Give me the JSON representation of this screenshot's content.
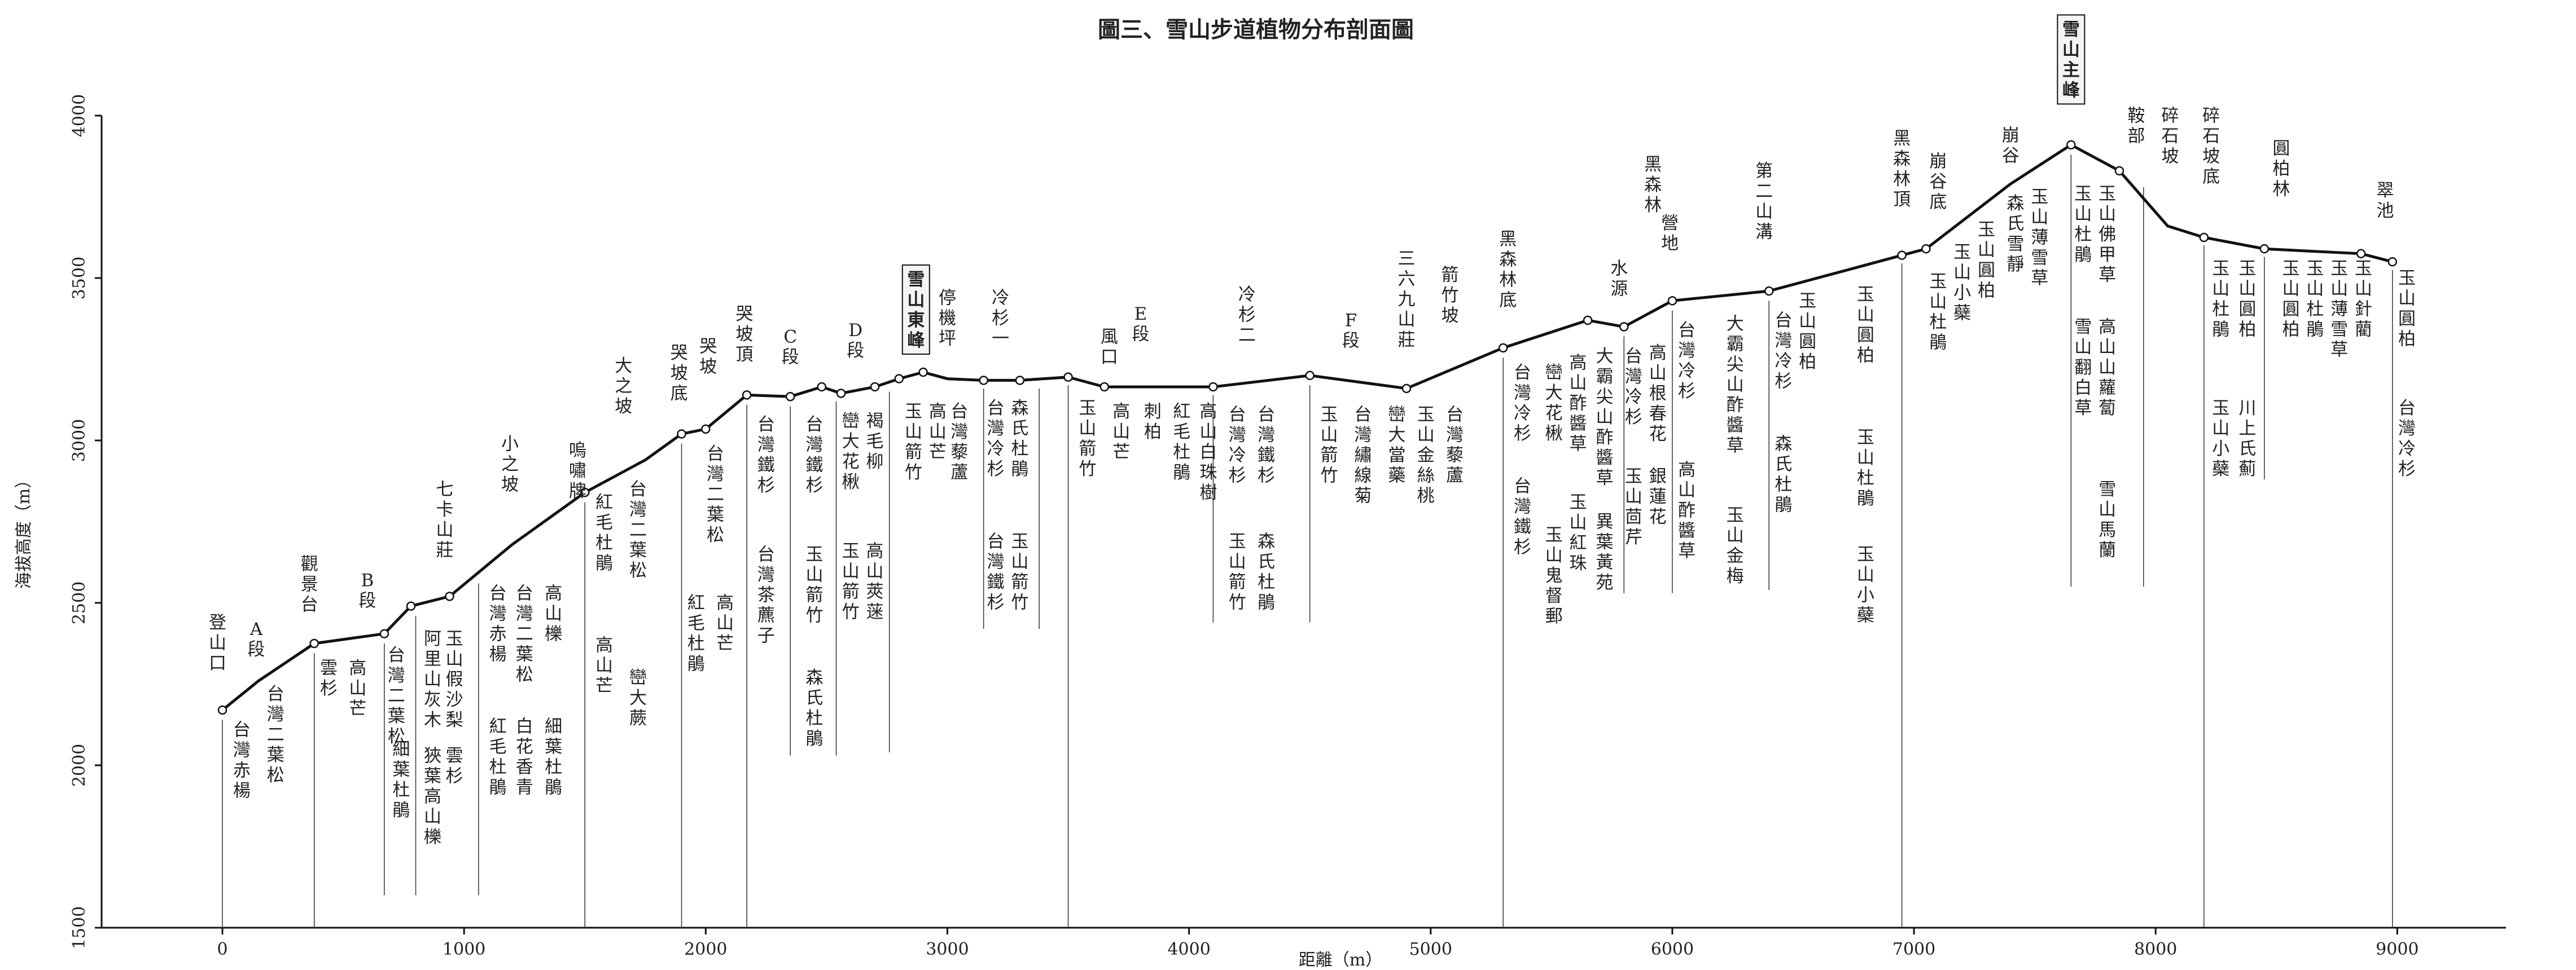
{
  "title": "圖三、雪山步道植物分布剖面圖",
  "axes": {
    "xlabel": "距離（m）",
    "ylabel": "海拔高度（m）",
    "xlim": [
      -500,
      9450
    ],
    "ylim": [
      1500,
      4000
    ],
    "xticks": [
      0,
      1000,
      2000,
      3000,
      4000,
      5000,
      6000,
      7000,
      8000,
      9000
    ],
    "yticks": [
      1500,
      2000,
      2500,
      3000,
      3500,
      4000
    ]
  },
  "chart_data": {
    "type": "line",
    "title": "圖三、雪山步道植物分布剖面圖",
    "xlabel": "距離（m）",
    "ylabel": "海拔高度（m）",
    "xlim": [
      -500,
      9450
    ],
    "ylim": [
      1500,
      4000
    ],
    "profile": [
      {
        "x": 0,
        "y": 2170
      },
      {
        "x": 150,
        "y": 2260
      },
      {
        "x": 380,
        "y": 2375
      },
      {
        "x": 670,
        "y": 2405
      },
      {
        "x": 780,
        "y": 2490
      },
      {
        "x": 940,
        "y": 2520
      },
      {
        "x": 1200,
        "y": 2680
      },
      {
        "x": 1500,
        "y": 2840
      },
      {
        "x": 1750,
        "y": 2940
      },
      {
        "x": 1900,
        "y": 3020
      },
      {
        "x": 2000,
        "y": 3035
      },
      {
        "x": 2170,
        "y": 3140
      },
      {
        "x": 2350,
        "y": 3135
      },
      {
        "x": 2480,
        "y": 3165
      },
      {
        "x": 2560,
        "y": 3145
      },
      {
        "x": 2700,
        "y": 3165
      },
      {
        "x": 2800,
        "y": 3190
      },
      {
        "x": 2900,
        "y": 3210
      },
      {
        "x": 3000,
        "y": 3190
      },
      {
        "x": 3150,
        "y": 3185
      },
      {
        "x": 3300,
        "y": 3185
      },
      {
        "x": 3500,
        "y": 3195
      },
      {
        "x": 3650,
        "y": 3165
      },
      {
        "x": 4100,
        "y": 3165
      },
      {
        "x": 4500,
        "y": 3200
      },
      {
        "x": 4900,
        "y": 3160
      },
      {
        "x": 5300,
        "y": 3285
      },
      {
        "x": 5650,
        "y": 3370
      },
      {
        "x": 5800,
        "y": 3350
      },
      {
        "x": 6000,
        "y": 3430
      },
      {
        "x": 6400,
        "y": 3460
      },
      {
        "x": 6950,
        "y": 3570
      },
      {
        "x": 7050,
        "y": 3590
      },
      {
        "x": 7400,
        "y": 3790
      },
      {
        "x": 7650,
        "y": 3910
      },
      {
        "x": 7850,
        "y": 3830
      },
      {
        "x": 8050,
        "y": 3660
      },
      {
        "x": 8200,
        "y": 3625
      },
      {
        "x": 8450,
        "y": 3590
      },
      {
        "x": 8850,
        "y": 3575
      },
      {
        "x": 8980,
        "y": 3550
      }
    ],
    "points": [
      {
        "x": 0,
        "y": 2170
      },
      {
        "x": 380,
        "y": 2375
      },
      {
        "x": 670,
        "y": 2405
      },
      {
        "x": 780,
        "y": 2490
      },
      {
        "x": 940,
        "y": 2520
      },
      {
        "x": 1500,
        "y": 2840
      },
      {
        "x": 1900,
        "y": 3020
      },
      {
        "x": 2000,
        "y": 3035
      },
      {
        "x": 2170,
        "y": 3140
      },
      {
        "x": 2350,
        "y": 3135
      },
      {
        "x": 2480,
        "y": 3165
      },
      {
        "x": 2560,
        "y": 3145
      },
      {
        "x": 2700,
        "y": 3165
      },
      {
        "x": 2800,
        "y": 3190
      },
      {
        "x": 2900,
        "y": 3210
      },
      {
        "x": 3150,
        "y": 3185
      },
      {
        "x": 3300,
        "y": 3185
      },
      {
        "x": 3500,
        "y": 3195
      },
      {
        "x": 3650,
        "y": 3165
      },
      {
        "x": 4100,
        "y": 3165
      },
      {
        "x": 4500,
        "y": 3200
      },
      {
        "x": 4900,
        "y": 3160
      },
      {
        "x": 5300,
        "y": 3285
      },
      {
        "x": 5650,
        "y": 3370
      },
      {
        "x": 5800,
        "y": 3350
      },
      {
        "x": 6000,
        "y": 3430
      },
      {
        "x": 6400,
        "y": 3460
      },
      {
        "x": 6950,
        "y": 3570
      },
      {
        "x": 7050,
        "y": 3590
      },
      {
        "x": 7650,
        "y": 3910
      },
      {
        "x": 7850,
        "y": 3830
      },
      {
        "x": 8200,
        "y": 3625
      },
      {
        "x": 8450,
        "y": 3590
      },
      {
        "x": 8850,
        "y": 3575
      },
      {
        "x": 8980,
        "y": 3550
      }
    ],
    "dividers": [
      {
        "x": 0,
        "y_top": 2140,
        "y_bottom": 1500
      },
      {
        "x": 380,
        "y_top": 2345,
        "y_bottom": 1500
      },
      {
        "x": 670,
        "y_top": 2375,
        "y_bottom": 1600
      },
      {
        "x": 800,
        "y_top": 2460,
        "y_bottom": 1600
      },
      {
        "x": 1060,
        "y_top": 2560,
        "y_bottom": 1600
      },
      {
        "x": 1500,
        "y_top": 2810,
        "y_bottom": 1500
      },
      {
        "x": 1900,
        "y_top": 2990,
        "y_bottom": 1500
      },
      {
        "x": 2170,
        "y_top": 3110,
        "y_bottom": 1500
      },
      {
        "x": 2350,
        "y_top": 3105,
        "y_bottom": 2030
      },
      {
        "x": 2540,
        "y_top": 3120,
        "y_bottom": 2030
      },
      {
        "x": 2760,
        "y_top": 3150,
        "y_bottom": 2040
      },
      {
        "x": 3150,
        "y_top": 3160,
        "y_bottom": 2420
      },
      {
        "x": 3380,
        "y_top": 3160,
        "y_bottom": 2420
      },
      {
        "x": 3500,
        "y_top": 3170,
        "y_bottom": 1500
      },
      {
        "x": 4100,
        "y_top": 3140,
        "y_bottom": 2440
      },
      {
        "x": 4500,
        "y_top": 3170,
        "y_bottom": 2440
      },
      {
        "x": 5300,
        "y_top": 3255,
        "y_bottom": 1500
      },
      {
        "x": 5800,
        "y_top": 3320,
        "y_bottom": 2530
      },
      {
        "x": 6000,
        "y_top": 3400,
        "y_bottom": 2530
      },
      {
        "x": 6400,
        "y_top": 3430,
        "y_bottom": 2540
      },
      {
        "x": 6950,
        "y_top": 3545,
        "y_bottom": 1500
      },
      {
        "x": 7650,
        "y_top": 3880,
        "y_bottom": 2550
      },
      {
        "x": 7950,
        "y_top": 3780,
        "y_bottom": 2550
      },
      {
        "x": 8200,
        "y_top": 3600,
        "y_bottom": 1500
      },
      {
        "x": 8450,
        "y_top": 3565,
        "y_bottom": 2880
      },
      {
        "x": 8980,
        "y_top": 3525,
        "y_bottom": 1500
      }
    ],
    "labels": [
      {
        "text": "登山口",
        "x": -20,
        "y": 2470
      },
      {
        "text": "A段",
        "x": 140,
        "y": 2450
      },
      {
        "text": "觀景台",
        "x": 360,
        "y": 2650
      },
      {
        "text": "B段",
        "x": 600,
        "y": 2600
      },
      {
        "text": "七卡山莊",
        "x": 920,
        "y": 2880
      },
      {
        "text": "小之坡",
        "x": 1190,
        "y": 3020
      },
      {
        "text": "嗚嘯牌",
        "x": 1470,
        "y": 3000
      },
      {
        "text": "大之坡",
        "x": 1660,
        "y": 3260
      },
      {
        "text": "哭坡底",
        "x": 1890,
        "y": 3300
      },
      {
        "text": "哭坡",
        "x": 2010,
        "y": 3320
      },
      {
        "text": "哭坡頂",
        "x": 2160,
        "y": 3420
      },
      {
        "text": "C段",
        "x": 2350,
        "y": 3350
      },
      {
        "text": "D段",
        "x": 2620,
        "y": 3370
      },
      {
        "text": "停機坪",
        "x": 3000,
        "y": 3470
      },
      {
        "text": "冷杉一",
        "x": 3220,
        "y": 3470
      },
      {
        "text": "風口",
        "x": 3670,
        "y": 3350
      },
      {
        "text": "E段",
        "x": 3800,
        "y": 3420
      },
      {
        "text": "冷杉二",
        "x": 4240,
        "y": 3480
      },
      {
        "text": "F段",
        "x": 4670,
        "y": 3400
      },
      {
        "text": "三六九山莊",
        "x": 4900,
        "y": 3590
      },
      {
        "text": "箭竹坡",
        "x": 5080,
        "y": 3540
      },
      {
        "text": "黑森林底",
        "x": 5320,
        "y": 3650
      },
      {
        "text": "水源",
        "x": 5780,
        "y": 3560
      },
      {
        "text": "營地",
        "x": 5990,
        "y": 3700
      },
      {
        "text": "黑森林",
        "x": 5920,
        "y": 3880
      },
      {
        "text": "第二山溝",
        "x": 6380,
        "y": 3860
      },
      {
        "text": "黑森林頂",
        "x": 6950,
        "y": 3960
      },
      {
        "text": "崩谷底",
        "x": 7100,
        "y": 3890
      },
      {
        "text": "崩谷",
        "x": 7400,
        "y": 3970
      },
      {
        "text": "鞍部",
        "x": 7920,
        "y": 4030
      },
      {
        "text": "碎石坡",
        "x": 8060,
        "y": 4030
      },
      {
        "text": "碎石坡底",
        "x": 8230,
        "y": 4030
      },
      {
        "text": "圓柏林",
        "x": 8520,
        "y": 3930
      },
      {
        "text": "翠池",
        "x": 8950,
        "y": 3800
      }
    ],
    "boxed_labels": [
      {
        "text": "雪山東峰",
        "x": 2870,
        "y": 3540
      },
      {
        "text": "雪山主峰",
        "x": 7650,
        "y": 4310
      }
    ],
    "species": [
      {
        "x": 80,
        "y": 2140,
        "text": "台灣赤楊"
      },
      {
        "x": 220,
        "y": 2250,
        "text": "台灣二葉松"
      },
      {
        "x": 440,
        "y": 2330,
        "text": "雲杉"
      },
      {
        "x": 560,
        "y": 2330,
        "text": "高山芒"
      },
      {
        "x": 720,
        "y": 2370,
        "text": "台灣二葉松"
      },
      {
        "x": 740,
        "y": 2080,
        "text": "細葉杜鵑"
      },
      {
        "x": 870,
        "y": 2420,
        "text": "阿里山灰木"
      },
      {
        "x": 960,
        "y": 2420,
        "text": "玉山假沙梨"
      },
      {
        "x": 870,
        "y": 2060,
        "text": "狹葉高山櫟"
      },
      {
        "x": 960,
        "y": 2060,
        "text": "雲杉"
      },
      {
        "x": 1140,
        "y": 2560,
        "text": "台灣赤楊"
      },
      {
        "x": 1250,
        "y": 2560,
        "text": "台灣二葉松"
      },
      {
        "x": 1370,
        "y": 2560,
        "text": "高山櫟"
      },
      {
        "x": 1140,
        "y": 2150,
        "text": "紅毛杜鵑"
      },
      {
        "x": 1250,
        "y": 2150,
        "text": "白花香青"
      },
      {
        "x": 1370,
        "y": 2150,
        "text": "細葉杜鵑"
      },
      {
        "x": 1580,
        "y": 2840,
        "text": "紅毛杜鵑"
      },
      {
        "x": 1720,
        "y": 2880,
        "text": "台灣二葉松"
      },
      {
        "x": 1580,
        "y": 2400,
        "text": "高山芒"
      },
      {
        "x": 1720,
        "y": 2300,
        "text": "巒大蕨"
      },
      {
        "x": 2040,
        "y": 2990,
        "text": "台灣二葉松"
      },
      {
        "x": 1960,
        "y": 2530,
        "text": "紅毛杜鵑"
      },
      {
        "x": 2080,
        "y": 2530,
        "text": "高山芒"
      },
      {
        "x": 2250,
        "y": 3080,
        "text": "台灣鐵杉"
      },
      {
        "x": 2250,
        "y": 2680,
        "text": "台灣茶藨子"
      },
      {
        "x": 2450,
        "y": 3080,
        "text": "台灣鐵杉"
      },
      {
        "x": 2450,
        "y": 2680,
        "text": "玉山箭竹"
      },
      {
        "x": 2450,
        "y": 2300,
        "text": "森氏杜鵑"
      },
      {
        "x": 2600,
        "y": 3090,
        "text": "巒大花楸"
      },
      {
        "x": 2700,
        "y": 3090,
        "text": "褐毛柳"
      },
      {
        "x": 2600,
        "y": 2690,
        "text": "玉山箭竹"
      },
      {
        "x": 2700,
        "y": 2690,
        "text": "高山莢蒾"
      },
      {
        "x": 2860,
        "y": 3120,
        "text": "玉山箭竹"
      },
      {
        "x": 2960,
        "y": 3120,
        "text": "高山芒"
      },
      {
        "x": 3050,
        "y": 3120,
        "text": "台灣藜蘆"
      },
      {
        "x": 3200,
        "y": 3130,
        "text": "台灣冷杉"
      },
      {
        "x": 3300,
        "y": 3130,
        "text": "森氏杜鵑"
      },
      {
        "x": 3200,
        "y": 2720,
        "text": "台灣鐵杉"
      },
      {
        "x": 3300,
        "y": 2720,
        "text": "玉山箭竹"
      },
      {
        "x": 3580,
        "y": 3130,
        "text": "玉山箭竹"
      },
      {
        "x": 3720,
        "y": 3120,
        "text": "高山芒"
      },
      {
        "x": 3850,
        "y": 3120,
        "text": "刺柏"
      },
      {
        "x": 3970,
        "y": 3120,
        "text": "紅毛杜鵑"
      },
      {
        "x": 4080,
        "y": 3120,
        "text": "高山白珠樹"
      },
      {
        "x": 4200,
        "y": 3110,
        "text": "台灣冷杉"
      },
      {
        "x": 4320,
        "y": 3110,
        "text": "台灣鐵杉"
      },
      {
        "x": 4200,
        "y": 2720,
        "text": "玉山箭竹"
      },
      {
        "x": 4320,
        "y": 2720,
        "text": "森氏杜鵑"
      },
      {
        "x": 4580,
        "y": 3110,
        "text": "玉山箭竹"
      },
      {
        "x": 4720,
        "y": 3110,
        "text": "台灣繡線菊"
      },
      {
        "x": 4860,
        "y": 3110,
        "text": "巒大當藥"
      },
      {
        "x": 4980,
        "y": 3110,
        "text": "玉山金絲桃"
      },
      {
        "x": 5100,
        "y": 3110,
        "text": "台灣藜蘆"
      },
      {
        "x": 5380,
        "y": 3240,
        "text": "台灣冷杉"
      },
      {
        "x": 5380,
        "y": 2890,
        "text": "台灣鐵杉"
      },
      {
        "x": 5510,
        "y": 3240,
        "text": "巒大花楸"
      },
      {
        "x": 5510,
        "y": 2740,
        "text": "玉山鬼督郵"
      },
      {
        "x": 5610,
        "y": 3270,
        "text": "高山酢醬草"
      },
      {
        "x": 5610,
        "y": 2840,
        "text": "玉山紅珠"
      },
      {
        "x": 5720,
        "y": 3290,
        "text": "大霸尖山酢醬草"
      },
      {
        "x": 5720,
        "y": 2780,
        "text": "異葉黃苑"
      },
      {
        "x": 5840,
        "y": 3290,
        "text": "台灣冷杉"
      },
      {
        "x": 5840,
        "y": 2920,
        "text": "玉山茴芹"
      },
      {
        "x": 5940,
        "y": 3300,
        "text": "高山根春花"
      },
      {
        "x": 5940,
        "y": 2920,
        "text": "銀蓮花"
      },
      {
        "x": 6060,
        "y": 3370,
        "text": "台灣冷杉"
      },
      {
        "x": 6060,
        "y": 2940,
        "text": "高山酢醬草"
      },
      {
        "x": 6260,
        "y": 3390,
        "text": "大霸尖山酢醬草"
      },
      {
        "x": 6260,
        "y": 2800,
        "text": "玉山金梅"
      },
      {
        "x": 6460,
        "y": 3400,
        "text": "台灣冷杉"
      },
      {
        "x": 6460,
        "y": 3020,
        "text": "森氏杜鵑"
      },
      {
        "x": 6560,
        "y": 3460,
        "text": "玉山圓柏"
      },
      {
        "x": 6800,
        "y": 3480,
        "text": "玉山圓柏"
      },
      {
        "x": 6800,
        "y": 3040,
        "text": "玉山杜鵑"
      },
      {
        "x": 6800,
        "y": 2680,
        "text": "玉山小蘗"
      },
      {
        "x": 7100,
        "y": 3520,
        "text": "玉山杜鵑"
      },
      {
        "x": 7200,
        "y": 3610,
        "text": "玉山小蘗"
      },
      {
        "x": 7300,
        "y": 3680,
        "text": "玉山圓柏"
      },
      {
        "x": 7420,
        "y": 3760,
        "text": "森氏雪靜"
      },
      {
        "x": 7520,
        "y": 3780,
        "text": "玉山薄雪草"
      },
      {
        "x": 7700,
        "y": 3790,
        "text": "玉山杜鵑"
      },
      {
        "x": 7800,
        "y": 3790,
        "text": "玉山佛甲草"
      },
      {
        "x": 7700,
        "y": 3380,
        "text": "雪山翻白草"
      },
      {
        "x": 7800,
        "y": 3380,
        "text": "高山山蘿蔔"
      },
      {
        "x": 7800,
        "y": 2880,
        "text": "雪山馬蘭"
      },
      {
        "x": 8270,
        "y": 3560,
        "text": "玉山杜鵑"
      },
      {
        "x": 8270,
        "y": 3130,
        "text": "玉山小蘗"
      },
      {
        "x": 8380,
        "y": 3560,
        "text": "玉山圓柏"
      },
      {
        "x": 8380,
        "y": 3130,
        "text": "川上氏薊"
      },
      {
        "x": 8560,
        "y": 3560,
        "text": "玉山圓柏"
      },
      {
        "x": 8660,
        "y": 3560,
        "text": "玉山杜鵑"
      },
      {
        "x": 8760,
        "y": 3560,
        "text": "玉山薄雪草"
      },
      {
        "x": 8860,
        "y": 3560,
        "text": "玉山針藺"
      },
      {
        "x": 9040,
        "y": 3530,
        "text": "玉山圓柏"
      },
      {
        "x": 9040,
        "y": 3130,
        "text": "台灣冷杉"
      }
    ]
  }
}
